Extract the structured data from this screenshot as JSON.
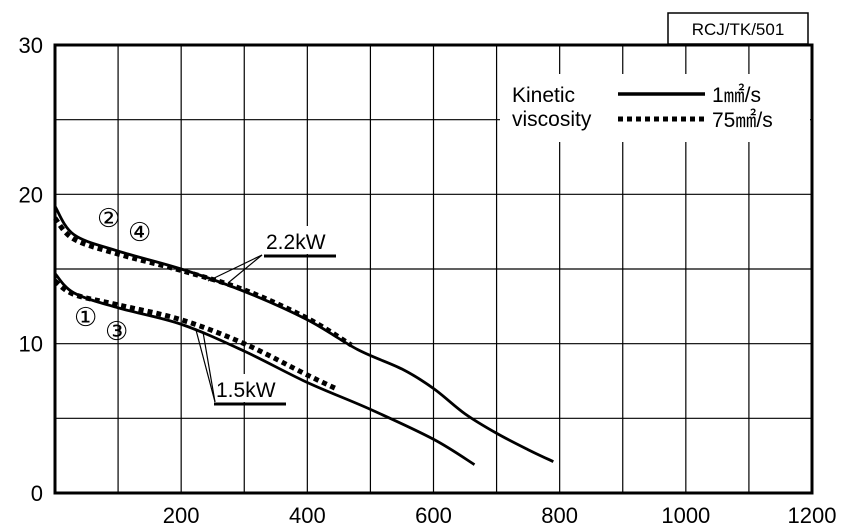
{
  "chart_data": {
    "type": "line",
    "title": "",
    "xlabel": "",
    "ylabel": "",
    "xlim": [
      0,
      1200
    ],
    "ylim": [
      0,
      30
    ],
    "x_ticks": [
      200,
      400,
      600,
      800,
      1000,
      1200
    ],
    "y_ticks": [
      0,
      10,
      20,
      30
    ],
    "grid": true,
    "legend": {
      "title_lines": [
        "Kinetic",
        "viscosity"
      ],
      "entries": [
        {
          "text": "1㎟/s",
          "style": "solid"
        },
        {
          "text": "75㎟/s",
          "style": "dotted"
        }
      ],
      "placement": "top-right"
    },
    "annotations": {
      "code": "RCJ/TK/501",
      "power_high": "2.2kW",
      "power_low": "1.5kW",
      "markers_high": [
        "②",
        "④"
      ],
      "markers_low": [
        "①",
        "③"
      ]
    },
    "series": [
      {
        "style": "solid",
        "group": "2.2kW",
        "x": [
          0,
          30,
          100,
          200,
          300,
          400,
          480,
          550,
          600,
          650,
          700,
          750,
          790
        ],
        "y": [
          19.2,
          17.3,
          16.2,
          15.0,
          13.5,
          11.6,
          9.6,
          8.3,
          7.0,
          5.3,
          4.0,
          2.9,
          2.1
        ]
      },
      {
        "style": "dotted",
        "group": "2.2kW",
        "x": [
          0,
          30,
          100,
          200,
          300,
          400,
          470
        ],
        "y": [
          18.4,
          17.0,
          16.0,
          14.9,
          13.6,
          11.7,
          9.9
        ]
      },
      {
        "style": "solid",
        "group": "1.5kW",
        "x": [
          0,
          30,
          100,
          200,
          300,
          400,
          500,
          600,
          665
        ],
        "y": [
          14.7,
          13.4,
          12.4,
          11.3,
          9.5,
          7.4,
          5.6,
          3.6,
          1.9
        ]
      },
      {
        "style": "dotted",
        "group": "1.5kW",
        "x": [
          0,
          30,
          100,
          200,
          300,
          400,
          445
        ],
        "y": [
          14.2,
          13.3,
          12.6,
          11.6,
          10.0,
          7.9,
          7.0
        ]
      }
    ]
  }
}
